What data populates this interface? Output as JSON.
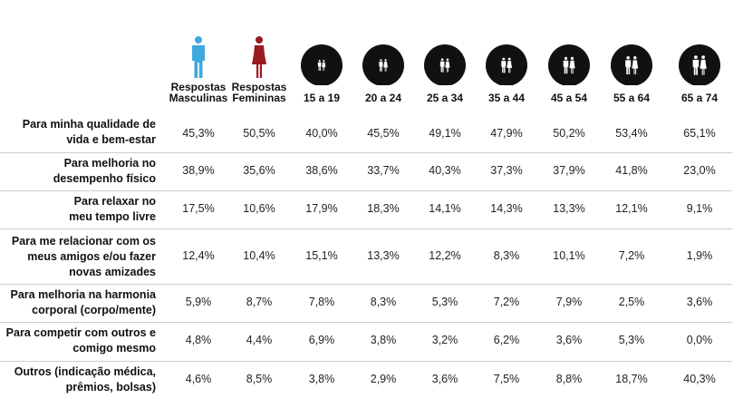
{
  "chart_data": {
    "type": "table",
    "columns": [
      {
        "label": "Respostas\nMasculinas",
        "icon": "male-person-icon",
        "color": "#3fa9dc"
      },
      {
        "label": "Respostas\nFemininas",
        "icon": "female-person-icon",
        "color": "#9b1b1e"
      },
      {
        "label": "15 a 19",
        "icon": "couple-icon"
      },
      {
        "label": "20 a 24",
        "icon": "couple-icon"
      },
      {
        "label": "25 a 34",
        "icon": "couple-icon"
      },
      {
        "label": "35 a 44",
        "icon": "couple-icon"
      },
      {
        "label": "45 a 54",
        "icon": "couple-icon"
      },
      {
        "label": "55 a 64",
        "icon": "couple-icon"
      },
      {
        "label": "65 a 74",
        "icon": "couple-icon"
      }
    ],
    "rows": [
      {
        "label": "Para minha qualidade de\nvida e bem-estar",
        "values": [
          "45,3%",
          "50,5%",
          "40,0%",
          "45,5%",
          "49,1%",
          "47,9%",
          "50,2%",
          "53,4%",
          "65,1%"
        ]
      },
      {
        "label": "Para melhoria no\ndesempenho físico",
        "values": [
          "38,9%",
          "35,6%",
          "38,6%",
          "33,7%",
          "40,3%",
          "37,3%",
          "37,9%",
          "41,8%",
          "23,0%"
        ]
      },
      {
        "label": "Para relaxar no\nmeu tempo livre",
        "values": [
          "17,5%",
          "10,6%",
          "17,9%",
          "18,3%",
          "14,1%",
          "14,3%",
          "13,3%",
          "12,1%",
          "9,1%"
        ]
      },
      {
        "label": "Para me relacionar com os\nmeus amigos e/ou fazer\nnovas amizades",
        "values": [
          "12,4%",
          "10,4%",
          "15,1%",
          "13,3%",
          "12,2%",
          "8,3%",
          "10,1%",
          "7,2%",
          "1,9%"
        ]
      },
      {
        "label": "Para melhoria na harmonia\ncorporal (corpo/mente)",
        "values": [
          "5,9%",
          "8,7%",
          "7,8%",
          "8,3%",
          "5,3%",
          "7,2%",
          "7,9%",
          "2,5%",
          "3,6%"
        ]
      },
      {
        "label": "Para competir com outros e\ncomigo mesmo",
        "values": [
          "4,8%",
          "4,4%",
          "6,9%",
          "3,8%",
          "3,2%",
          "6,2%",
          "3,6%",
          "5,3%",
          "0,0%"
        ]
      },
      {
        "label": "Outros (indicação médica,\nprêmios, bolsas)",
        "values": [
          "4,6%",
          "8,5%",
          "3,8%",
          "2,9%",
          "3,6%",
          "7,5%",
          "8,8%",
          "18,7%",
          "40,3%"
        ]
      }
    ],
    "colors": {
      "male": "#3fa9dc",
      "female": "#9b1b1e",
      "circle": "#111111",
      "separator": "#cccccc"
    }
  }
}
